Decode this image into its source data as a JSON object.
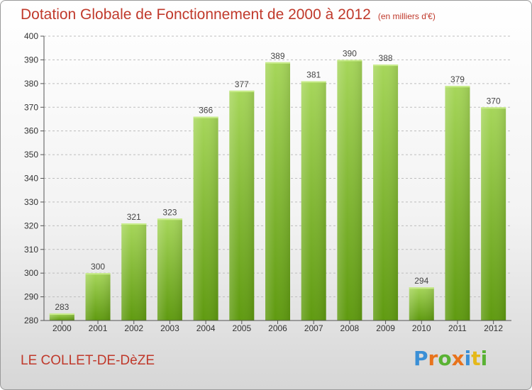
{
  "header": {
    "title": "Dotation Globale de Fonctionnement de 2000 à 2012",
    "unit": "(en milliers d'€)"
  },
  "footer": {
    "commune": "LE COLLET-DE-DèZE",
    "brand": "Proxiti",
    "brand_letters": [
      {
        "char": "P",
        "color": "#3a8fd6"
      },
      {
        "char": "r",
        "color": "#e8731c"
      },
      {
        "char": "o",
        "color": "#59b233"
      },
      {
        "char": "x",
        "color": "#e8731c"
      },
      {
        "char": "i",
        "color": "#3a8fd6"
      },
      {
        "char": "t",
        "color": "#e5b81a"
      },
      {
        "char": "i",
        "color": "#59b233"
      }
    ]
  },
  "colors": {
    "text_accent": "#c0392b",
    "bar_light": "#a6d65a",
    "bar_dark": "#5f9a10",
    "grid": "#bdbdbd"
  },
  "chart_data": {
    "type": "bar",
    "title": "Dotation Globale de Fonctionnement de 2000 à 2012",
    "subtitle": "(en milliers d'€)",
    "categories": [
      "2000",
      "2001",
      "2002",
      "2003",
      "2004",
      "2005",
      "2006",
      "2007",
      "2008",
      "2009",
      "2010",
      "2011",
      "2012"
    ],
    "values": [
      283,
      300,
      321,
      323,
      366,
      377,
      389,
      381,
      390,
      388,
      294,
      379,
      370
    ],
    "ylim": [
      280,
      400
    ],
    "yticks": [
      280,
      290,
      300,
      310,
      320,
      330,
      340,
      350,
      360,
      370,
      380,
      390,
      400
    ],
    "grid": true,
    "data_labels": true
  }
}
